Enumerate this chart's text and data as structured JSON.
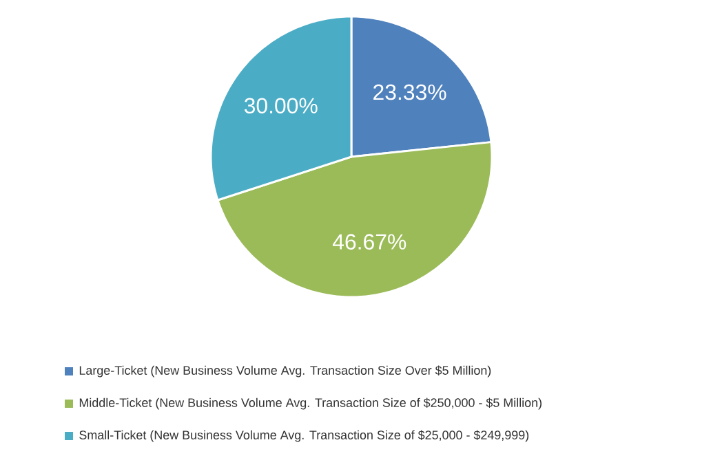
{
  "chart_data": {
    "type": "pie",
    "categories": [
      "Large-Ticket (New Business Volume Avg. Transaction Size Over $5 Million)",
      "Middle-Ticket (New Business Volume Avg. Transaction Size of $250,000 - $5 Million)",
      "Small-Ticket (New Business Volume Avg. Transaction Size of $25,000 - $249,999)"
    ],
    "values": [
      23.33,
      46.67,
      30.0
    ],
    "value_labels": [
      "23.33%",
      "46.67%",
      "30.00%"
    ],
    "colors": [
      "#4f81bd",
      "#9bbb59",
      "#4bacc6"
    ],
    "legend": "bottom"
  }
}
